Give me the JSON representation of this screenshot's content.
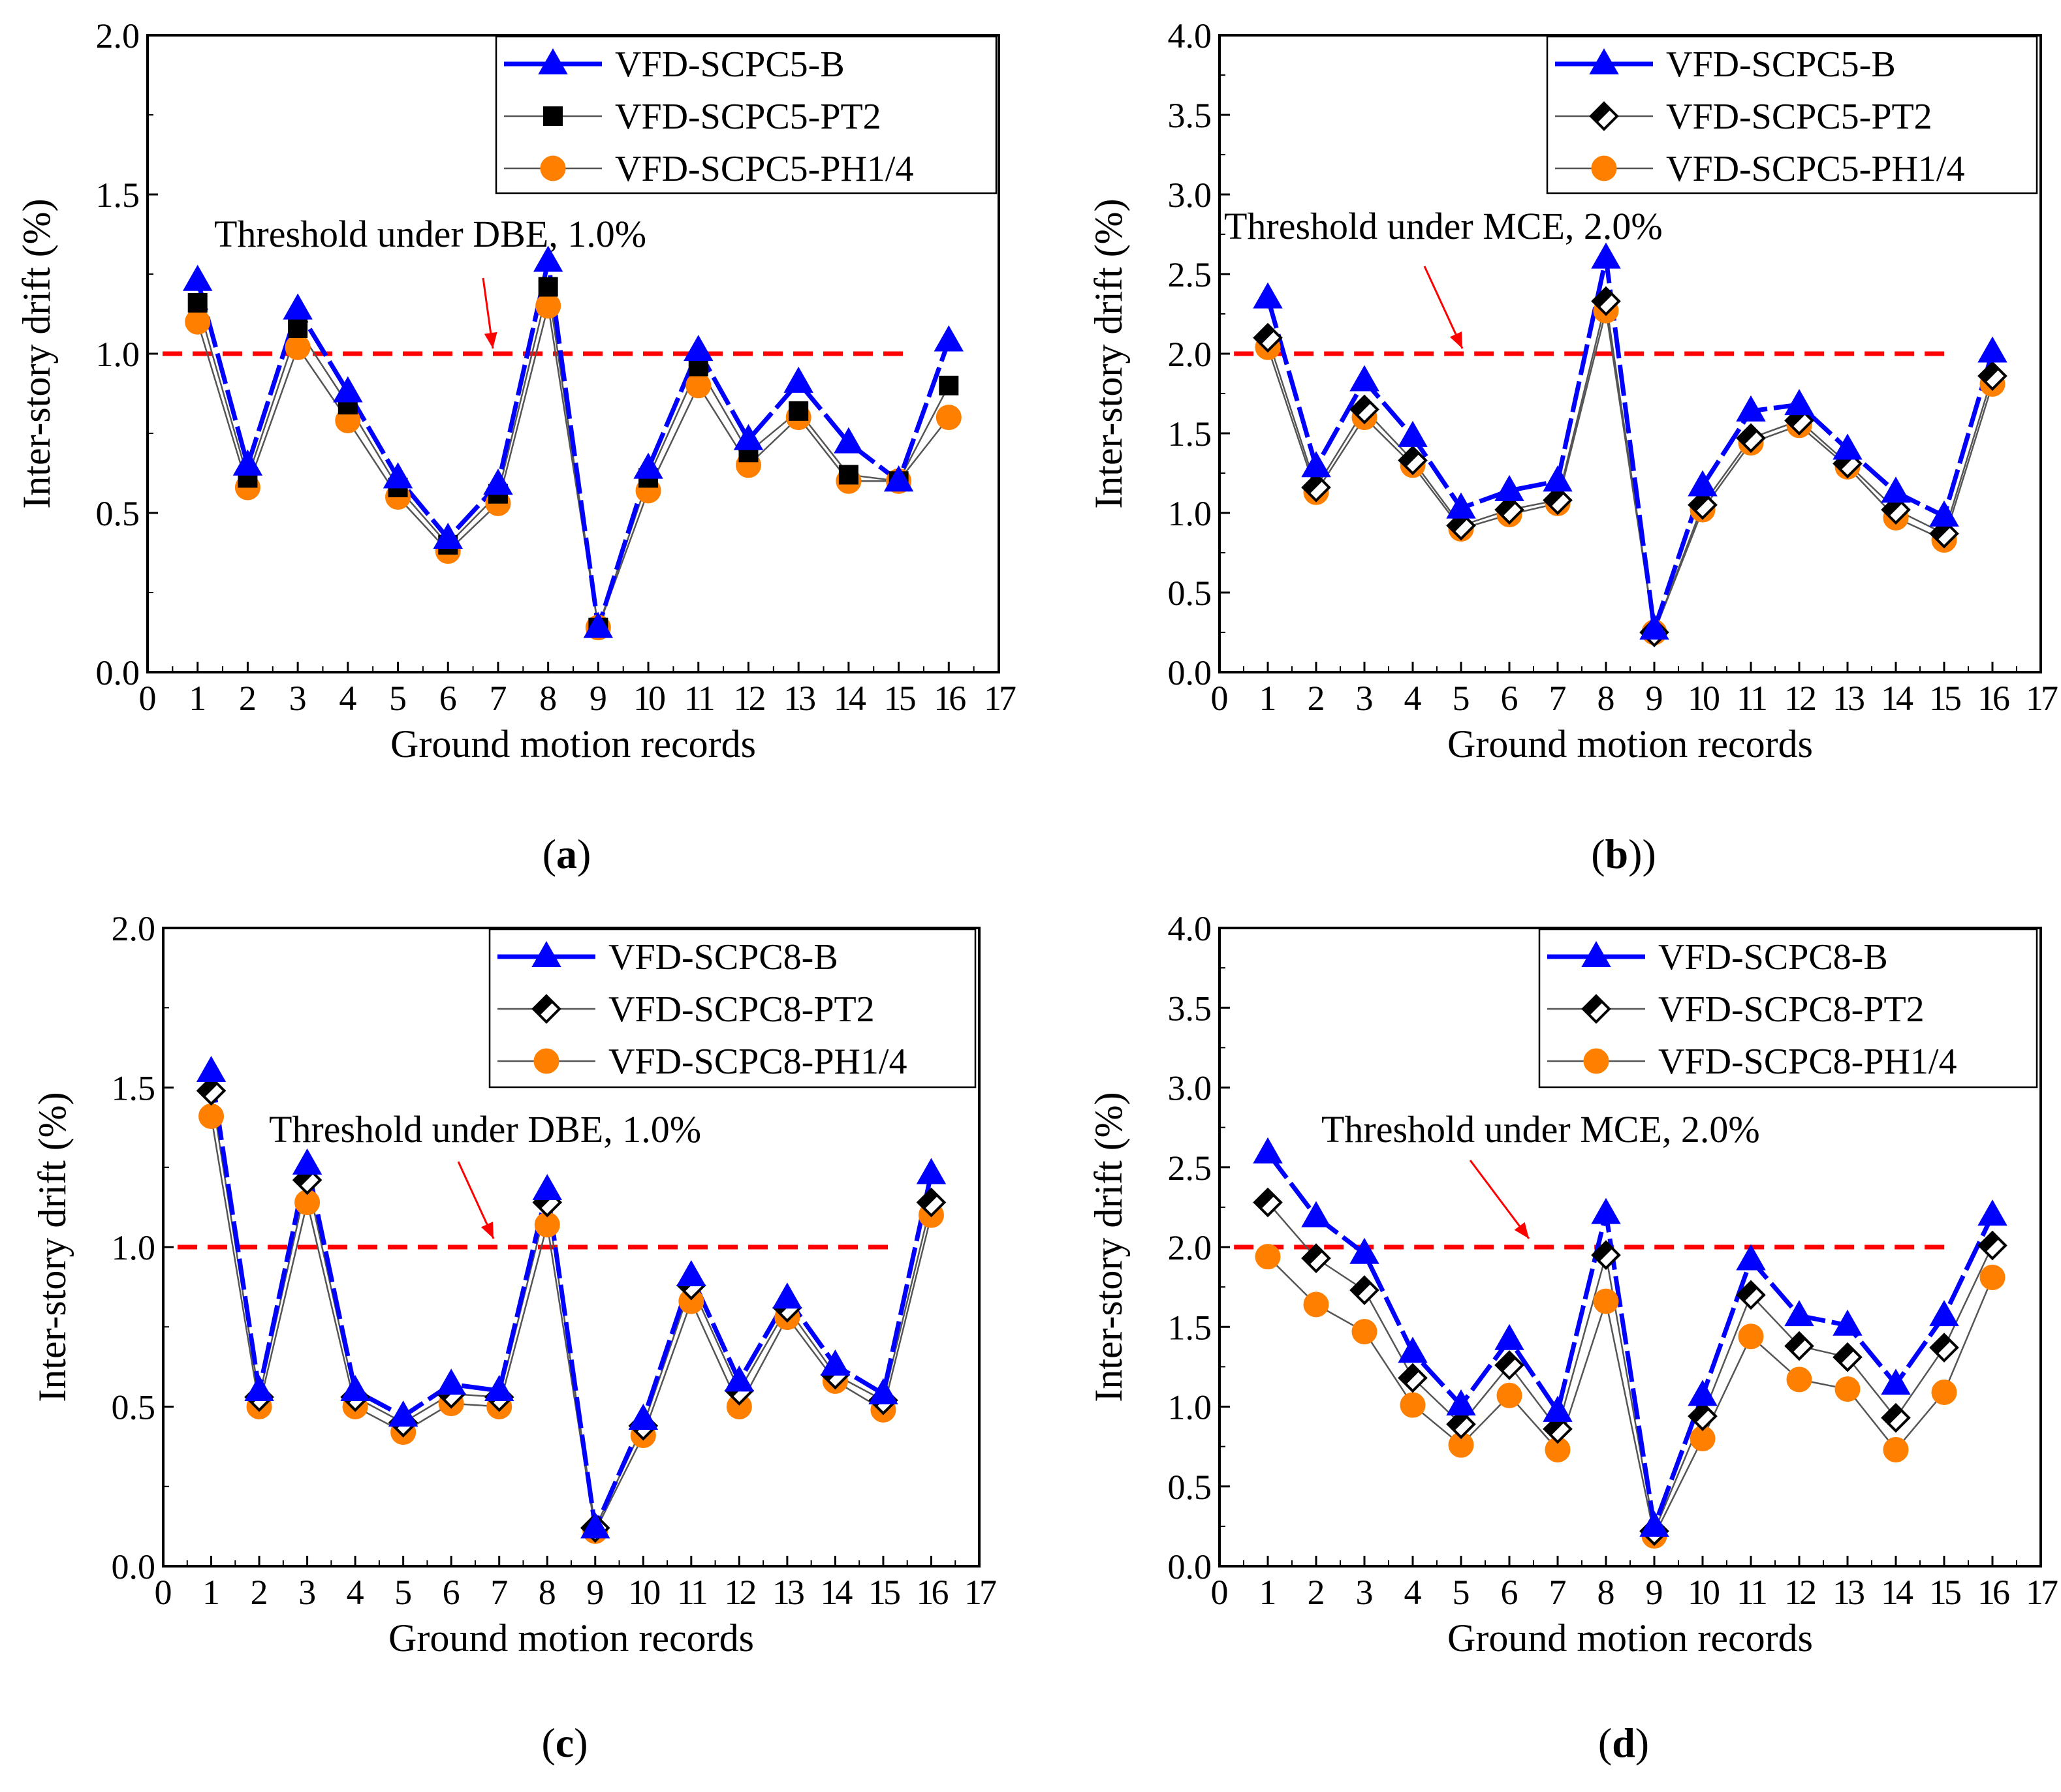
{
  "panels": [
    {
      "label_letter": "a",
      "label_close": ")",
      "chart_data": {
        "type": "line",
        "x": [
          1,
          2,
          3,
          4,
          5,
          6,
          7,
          8,
          9,
          10,
          11,
          12,
          13,
          14,
          15,
          16
        ],
        "xlim": [
          0,
          17
        ],
        "xticks": [
          "0",
          "1",
          "2",
          "3",
          "4",
          "5",
          "6",
          "7",
          "8",
          "9",
          "10",
          "11",
          "12",
          "13",
          "14",
          "15",
          "16",
          "17"
        ],
        "ylim": [
          0,
          2.0
        ],
        "yticks": [
          "0.0",
          "0.5",
          "1.0",
          "1.5",
          "2.0"
        ],
        "xlabel": "Ground motion records",
        "ylabel": "Inter-story drift (%)",
        "legend_position": "top-right",
        "threshold": {
          "value": 1.0,
          "label": "Threshold under DBE, 1.0%",
          "color": "#ff0000"
        },
        "series": [
          {
            "name": "VFD-SCPC5-B",
            "marker": "triangle",
            "color": "#0000ff",
            "values": [
              1.23,
              0.65,
              1.14,
              0.88,
              0.61,
              0.42,
              0.59,
              1.29,
              0.14,
              0.64,
              1.01,
              0.73,
              0.91,
              0.72,
              0.6,
              1.04
            ]
          },
          {
            "name": "VFD-SCPC5-PT2",
            "marker": "square",
            "color": "#000000",
            "values": [
              1.16,
              0.61,
              1.08,
              0.84,
              0.58,
              0.4,
              0.56,
              1.21,
              0.14,
              0.61,
              0.96,
              0.69,
              0.82,
              0.62,
              0.6,
              0.9
            ]
          },
          {
            "name": "VFD-SCPC5-PH1/4",
            "marker": "circle",
            "color": "#ff8000",
            "values": [
              1.1,
              0.58,
              1.02,
              0.79,
              0.55,
              0.38,
              0.53,
              1.15,
              0.14,
              0.57,
              0.9,
              0.65,
              0.8,
              0.6,
              0.6,
              0.8
            ]
          }
        ]
      }
    },
    {
      "label_letter": "b",
      "label_close": "))",
      "chart_data": {
        "type": "line",
        "x": [
          1,
          2,
          3,
          4,
          5,
          6,
          7,
          8,
          9,
          10,
          11,
          12,
          13,
          14,
          15,
          16
        ],
        "xlim": [
          0,
          17
        ],
        "xticks": [
          "0",
          "1",
          "2",
          "3",
          "4",
          "5",
          "6",
          "7",
          "8",
          "9",
          "10",
          "11",
          "12",
          "13",
          "14",
          "15",
          "16",
          "17"
        ],
        "ylim": [
          0,
          4.0
        ],
        "yticks": [
          "0.0",
          "0.5",
          "1.0",
          "1.5",
          "2.0",
          "2.5",
          "3.0",
          "3.5",
          "4.0"
        ],
        "xlabel": "Ground motion records",
        "ylabel": "Inter-story drift (%)",
        "legend_position": "top-right",
        "threshold": {
          "value": 2.0,
          "label": "Threshold under MCE, 2.0%",
          "color": "#ff0000"
        },
        "series": [
          {
            "name": "VFD-SCPC5-B",
            "marker": "triangle",
            "color": "#0000ff",
            "values": [
              2.35,
              1.29,
              1.83,
              1.48,
              1.03,
              1.14,
              1.2,
              2.6,
              0.27,
              1.17,
              1.64,
              1.68,
              1.4,
              1.13,
              0.98,
              2.01
            ]
          },
          {
            "name": "VFD-SCPC5-PT2",
            "marker": "diamond",
            "color": "#000000",
            "values": [
              2.1,
              1.16,
              1.65,
              1.33,
              0.92,
              1.02,
              1.08,
              2.33,
              0.25,
              1.05,
              1.47,
              1.58,
              1.31,
              1.02,
              0.87,
              1.86
            ]
          },
          {
            "name": "VFD-SCPC5-PH1/4",
            "marker": "circle",
            "color": "#ff8000",
            "values": [
              2.04,
              1.13,
              1.6,
              1.3,
              0.9,
              0.99,
              1.06,
              2.27,
              0.25,
              1.02,
              1.44,
              1.55,
              1.29,
              0.97,
              0.83,
              1.81
            ]
          }
        ]
      }
    },
    {
      "label_letter": "c",
      "label_close": ")",
      "chart_data": {
        "type": "line",
        "x": [
          1,
          2,
          3,
          4,
          5,
          6,
          7,
          8,
          9,
          10,
          11,
          12,
          13,
          14,
          15,
          16
        ],
        "xlim": [
          0,
          17
        ],
        "xticks": [
          "0",
          "1",
          "2",
          "3",
          "4",
          "5",
          "6",
          "7",
          "8",
          "9",
          "10",
          "11",
          "12",
          "13",
          "14",
          "15",
          "16",
          "17"
        ],
        "ylim": [
          0,
          2.0
        ],
        "yticks": [
          "0.0",
          "0.5",
          "1.0",
          "1.5",
          "2.0"
        ],
        "xlabel": "Ground motion records",
        "ylabel": "Inter-story drift (%)",
        "legend_position": "top-right",
        "threshold": {
          "value": 1.0,
          "label": "Threshold under DBE, 1.0%",
          "color": "#ff0000"
        },
        "series": [
          {
            "name": "VFD-SCPC8-B",
            "marker": "triangle",
            "color": "#0000ff",
            "values": [
              1.55,
              0.55,
              1.26,
              0.55,
              0.47,
              0.57,
              0.55,
              1.18,
              0.12,
              0.46,
              0.91,
              0.58,
              0.84,
              0.63,
              0.54,
              1.23
            ]
          },
          {
            "name": "VFD-SCPC8-PT2",
            "marker": "diamond",
            "color": "#000000",
            "values": [
              1.49,
              0.53,
              1.21,
              0.53,
              0.45,
              0.54,
              0.53,
              1.14,
              0.12,
              0.44,
              0.88,
              0.55,
              0.81,
              0.6,
              0.52,
              1.14
            ]
          },
          {
            "name": "VFD-SCPC8-PH1/4",
            "marker": "circle",
            "color": "#ff8000",
            "values": [
              1.41,
              0.5,
              1.14,
              0.5,
              0.42,
              0.51,
              0.5,
              1.07,
              0.11,
              0.41,
              0.83,
              0.5,
              0.78,
              0.58,
              0.49,
              1.1
            ]
          }
        ]
      }
    },
    {
      "label_letter": "d",
      "label_close": ")",
      "chart_data": {
        "type": "line",
        "x": [
          1,
          2,
          3,
          4,
          5,
          6,
          7,
          8,
          9,
          10,
          11,
          12,
          13,
          14,
          15,
          16
        ],
        "xlim": [
          0,
          17
        ],
        "xticks": [
          "0",
          "1",
          "2",
          "3",
          "4",
          "5",
          "6",
          "7",
          "8",
          "9",
          "10",
          "11",
          "12",
          "13",
          "14",
          "15",
          "16",
          "17"
        ],
        "ylim": [
          0,
          4.0
        ],
        "yticks": [
          "0.0",
          "0.5",
          "1.0",
          "1.5",
          "2.0",
          "2.5",
          "3.0",
          "3.5",
          "4.0"
        ],
        "xlabel": "Ground motion records",
        "ylabel": "Inter-story drift (%)",
        "legend_position": "top-right",
        "threshold": {
          "value": 2.0,
          "label": "Threshold under MCE, 2.0%",
          "color": "#ff0000"
        },
        "series": [
          {
            "name": "VFD-SCPC8-B",
            "marker": "triangle",
            "color": "#0000ff",
            "values": [
              2.59,
              2.19,
              1.96,
              1.34,
              1.01,
              1.42,
              0.97,
              2.21,
              0.25,
              1.07,
              1.92,
              1.57,
              1.51,
              1.14,
              1.57,
              2.2
            ]
          },
          {
            "name": "VFD-SCPC8-PT2",
            "marker": "diamond",
            "color": "#000000",
            "values": [
              2.28,
              1.93,
              1.73,
              1.18,
              0.89,
              1.26,
              0.86,
              1.95,
              0.22,
              0.94,
              1.7,
              1.38,
              1.31,
              0.93,
              1.37,
              2.01
            ]
          },
          {
            "name": "VFD-SCPC8-PH1/4",
            "marker": "circle",
            "color": "#ff8000",
            "values": [
              1.94,
              1.64,
              1.47,
              1.01,
              0.76,
              1.07,
              0.73,
              1.66,
              0.19,
              0.8,
              1.44,
              1.17,
              1.11,
              0.73,
              1.09,
              1.81
            ]
          }
        ]
      }
    }
  ]
}
